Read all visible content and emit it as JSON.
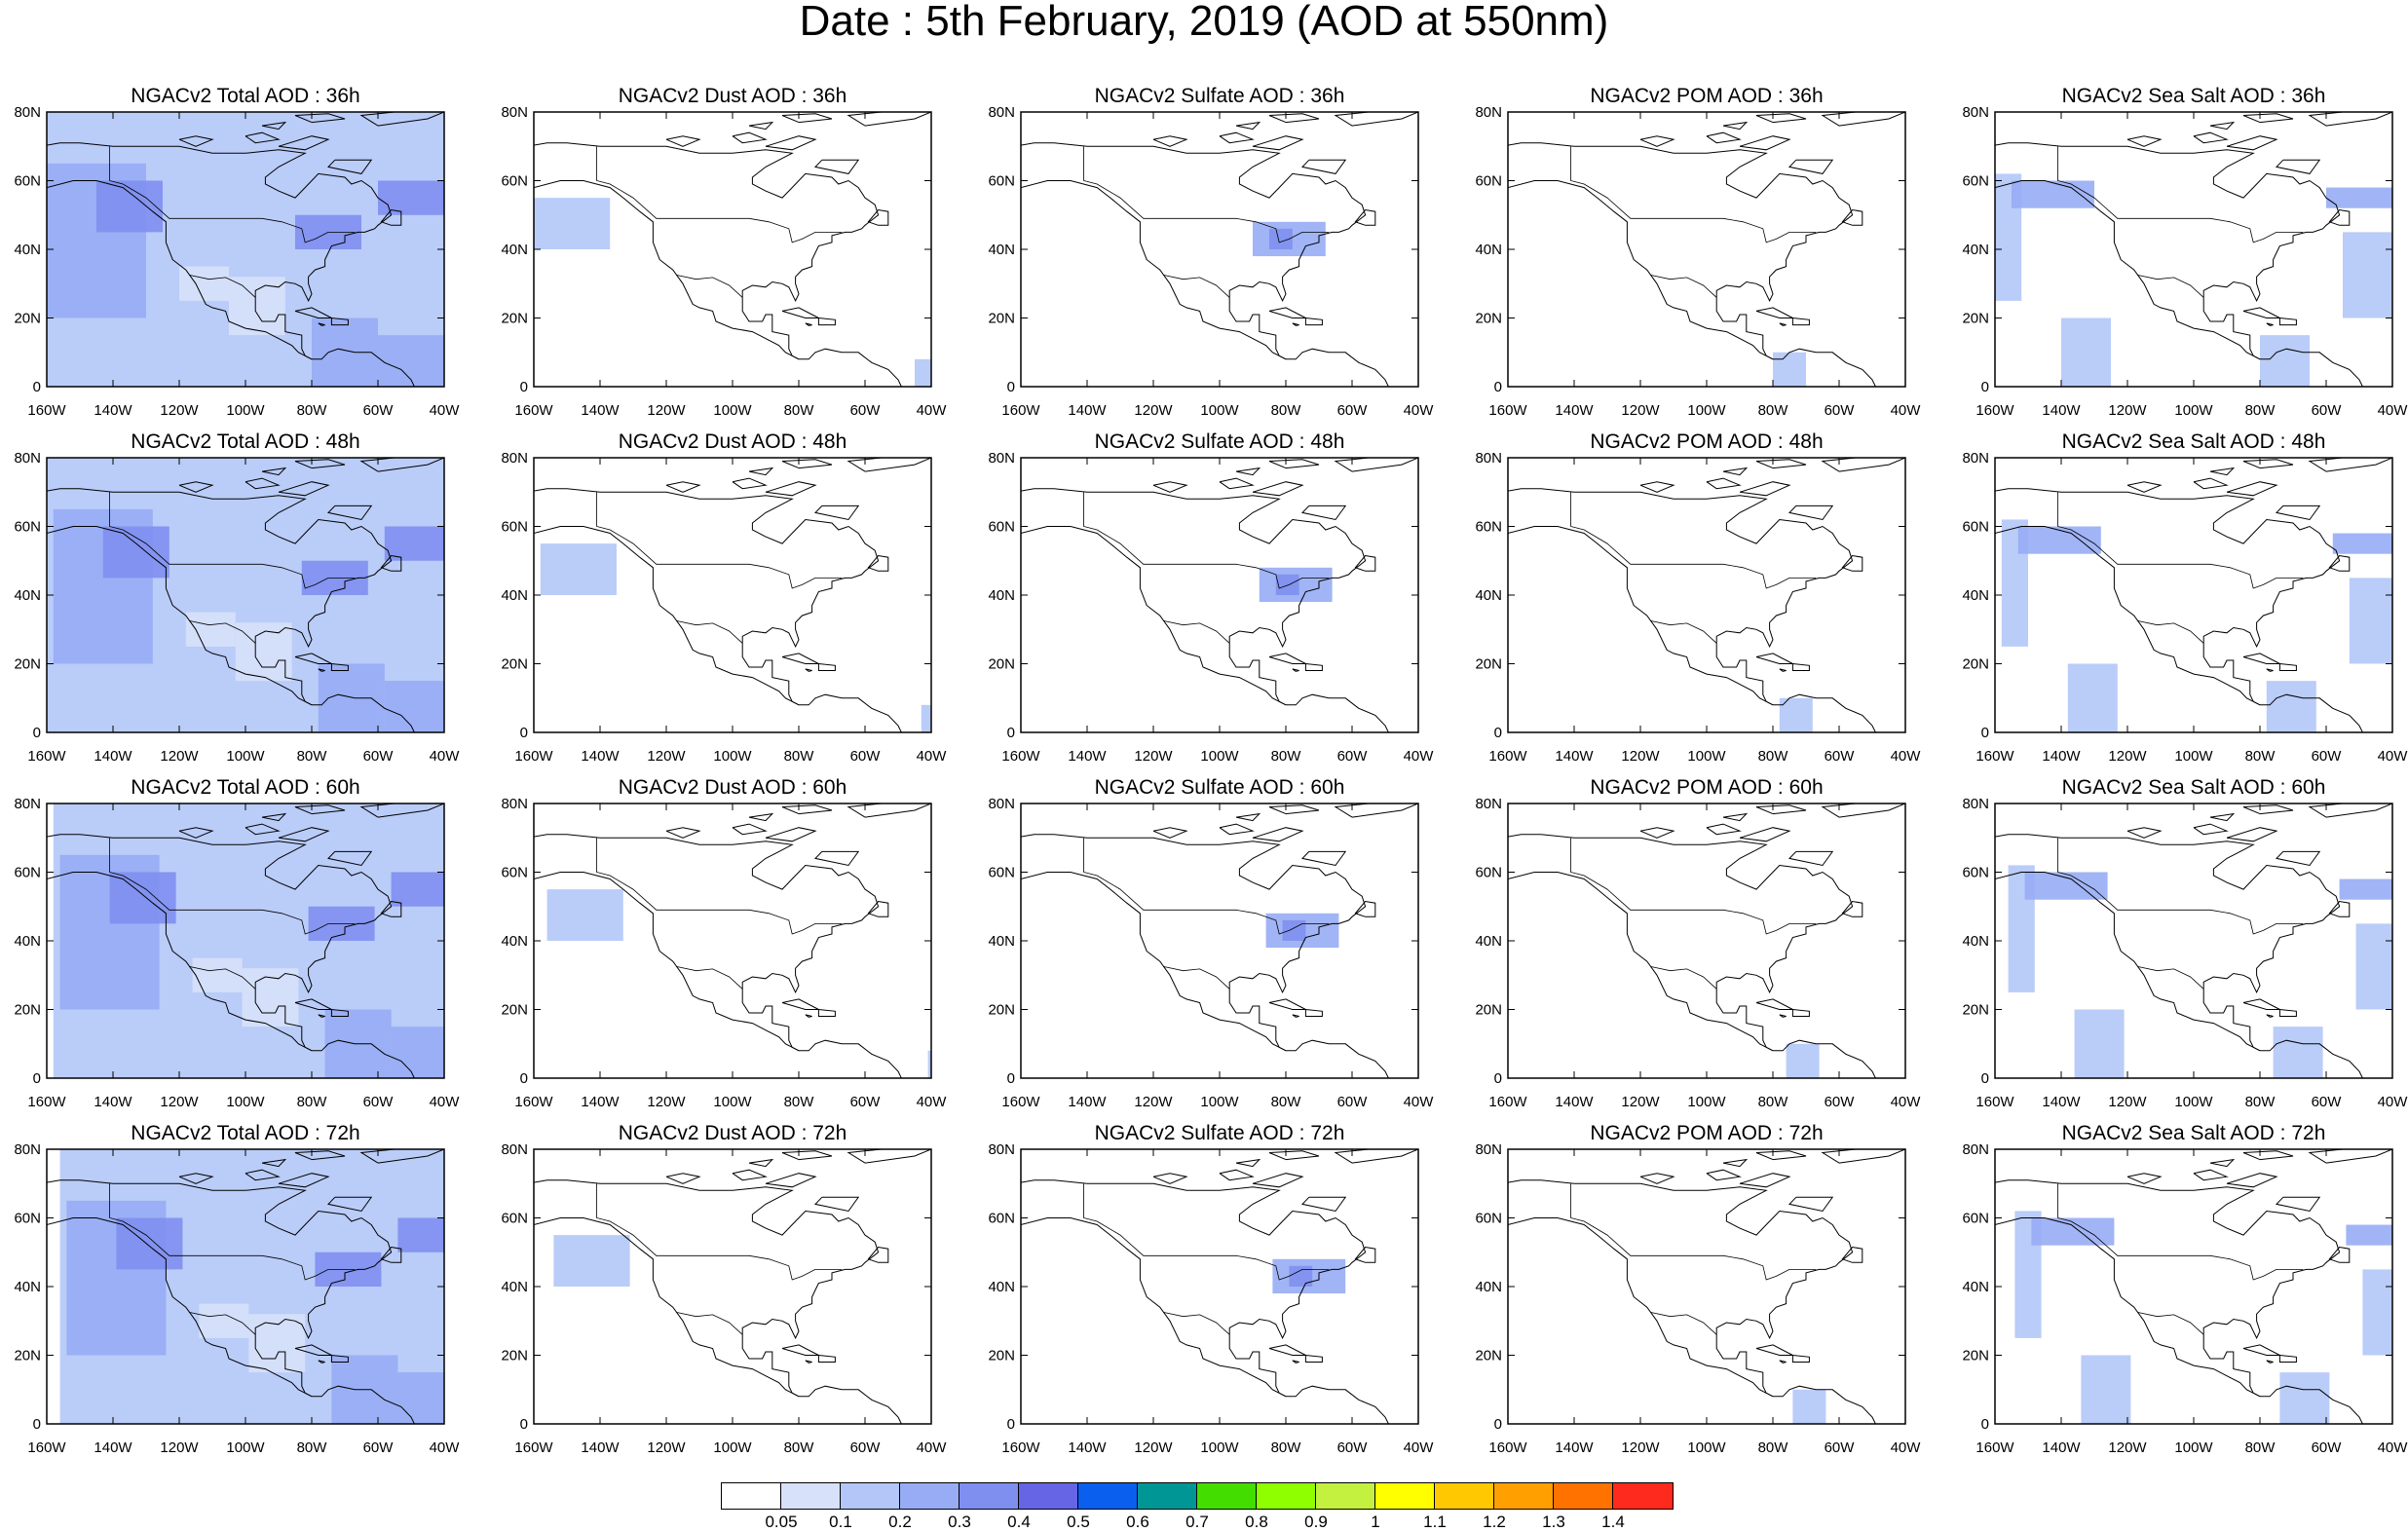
{
  "title": "Date : 5th February, 2019 (AOD at 550nm)",
  "lat_labels": [
    "80N",
    "60N",
    "40N",
    "20N",
    "0"
  ],
  "lon_labels": [
    "160W",
    "140W",
    "120W",
    "100W",
    "80W",
    "60W",
    "40W"
  ],
  "panel_titles": [
    [
      "NGACv2 Total AOD : 36h",
      "NGACv2 Dust AOD : 36h",
      "NGACv2 Sulfate AOD : 36h",
      "NGACv2 POM AOD : 36h",
      "NGACv2 Sea Salt AOD : 36h"
    ],
    [
      "NGACv2 Total AOD : 48h",
      "NGACv2 Dust AOD : 48h",
      "NGACv2 Sulfate AOD : 48h",
      "NGACv2 POM AOD : 48h",
      "NGACv2 Sea Salt AOD : 48h"
    ],
    [
      "NGACv2 Total AOD : 60h",
      "NGACv2 Dust AOD : 60h",
      "NGACv2 Sulfate AOD : 60h",
      "NGACv2 POM AOD : 60h",
      "NGACv2 Sea Salt AOD : 60h"
    ],
    [
      "NGACv2 Total AOD : 72h",
      "NGACv2 Dust AOD : 72h",
      "NGACv2 Sulfate AOD : 72h",
      "NGACv2 POM AOD : 72h",
      "NGACv2 Sea Salt  AOD : 72h"
    ]
  ],
  "colorbar": {
    "colors": [
      "#ffffff",
      "#d7e1fa",
      "#b3c6f7",
      "#97acf4",
      "#7f8ff0",
      "#6565e6",
      "#0a5fee",
      "#009696",
      "#43de00",
      "#8fff00",
      "#c4f040",
      "#ffff00",
      "#ffc800",
      "#ff9f00",
      "#ff7200",
      "#ff2a1e"
    ],
    "labels": [
      "0.05",
      "0.1",
      "0.2",
      "0.3",
      "0.4",
      "0.5",
      "0.6",
      "0.7",
      "0.8",
      "0.9",
      "1",
      "1.1",
      "1.2",
      "1.3",
      "1.4"
    ]
  },
  "field_patches": {
    "Total": [
      [
        -162,
        0,
        120,
        82,
        0.1
      ],
      [
        -160,
        20,
        -130,
        65,
        0.2
      ],
      [
        -145,
        45,
        -125,
        60,
        0.3
      ],
      [
        -85,
        40,
        -65,
        50,
        0.3
      ],
      [
        -80,
        0,
        -60,
        20,
        0.2
      ],
      [
        -60,
        0,
        -38,
        15,
        0.2
      ],
      [
        -60,
        50,
        -38,
        60,
        0.3
      ],
      [
        -105,
        15,
        -88,
        32,
        0.05
      ],
      [
        -120,
        25,
        -105,
        35,
        0.05
      ]
    ],
    "Dust": [
      [
        -160,
        40,
        -137,
        55,
        0.1
      ],
      [
        -45,
        0,
        -38,
        8,
        0.1
      ]
    ],
    "Sulfate": [
      [
        -90,
        38,
        -68,
        48,
        0.2
      ],
      [
        -85,
        40,
        -78,
        46,
        0.3
      ]
    ],
    "POM": [
      [
        -80,
        0,
        -70,
        10,
        0.1
      ]
    ],
    "SeaSalt": [
      [
        -160,
        25,
        -152,
        62,
        0.1
      ],
      [
        -155,
        52,
        -130,
        60,
        0.2
      ],
      [
        -60,
        52,
        -38,
        58,
        0.2
      ],
      [
        -140,
        0,
        -125,
        20,
        0.1
      ],
      [
        -80,
        0,
        -65,
        15,
        0.1
      ],
      [
        -55,
        20,
        -40,
        45,
        0.1
      ]
    ]
  }
}
